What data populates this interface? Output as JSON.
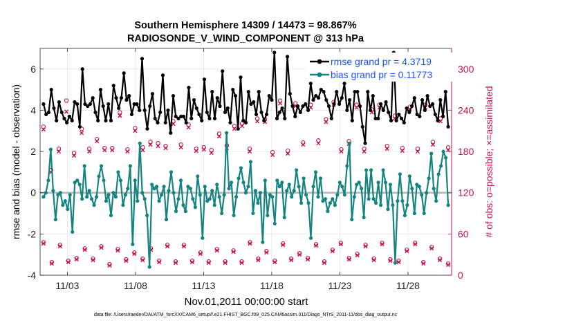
{
  "chart_data": {
    "type": "line",
    "title": "Southern Hemisphere 14309 / 14473 = 98.867%",
    "subtitle": "RADIOSONDE_V_WIND_COMPONENT @ 313 hPa",
    "xlabel": "Nov.01,2011 00:00:00 start",
    "ylabel": "rmse and bias (model - observation)",
    "y2label": "# of obs: o=possible; ×=assimilated",
    "xlim": [
      1.0,
      31.2
    ],
    "ylim": [
      -4,
      7
    ],
    "y2lim": [
      0,
      330
    ],
    "x_ticks": [
      3,
      8,
      13,
      18,
      23,
      28
    ],
    "x_tick_labels": [
      "11/03",
      "11/08",
      "11/13",
      "11/18",
      "11/23",
      "11/28"
    ],
    "y_ticks": [
      "-4",
      "-2",
      "0",
      "2",
      "4",
      "6"
    ],
    "y2_ticks": [
      "0",
      "60",
      "120",
      "180",
      "240",
      "300"
    ],
    "grid": true,
    "legend_position": "top-right",
    "footer": "data file: /Users/raeder/DAI/ATM_forcXX/CAM6_setup/f.e21.FHIST_BGC.f09_025.CAM6assim.011/Diags_NTrS_2011-11/obs_diag_output.nc",
    "series": [
      {
        "name": "rmse grand pr = 4.3719",
        "color": "#000000",
        "marker": "dot",
        "values": [
          4.3,
          3.8,
          3.9,
          5.0,
          4.1,
          3.5,
          4.4,
          3.9,
          3.6,
          3.4,
          3.7,
          3.5,
          4.4,
          4.3,
          3.2,
          6.0,
          4.3,
          4.2,
          4.3,
          4.6,
          3.9,
          3.5,
          5.0,
          4.2,
          3.5,
          4.3,
          3.5,
          5.2,
          4.6,
          4.1,
          4.6,
          5.8,
          4.5,
          4.7,
          3.8,
          4.3,
          4.3,
          4.0,
          6.5,
          4.0,
          3.1,
          4.2,
          4.8,
          3.6,
          3.4,
          3.9,
          5.7,
          3.4,
          4.0,
          2.9,
          4.7,
          3.7,
          3.6,
          3.7,
          3.7,
          3.4,
          5.1,
          3.6,
          4.5,
          4.1,
          3.8,
          3.5,
          5.5,
          3.9,
          3.6,
          4.9,
          3.6,
          4.6,
          4.2,
          5.9,
          3.9,
          4.1,
          3.4,
          5.0,
          4.7,
          3.1,
          5.6,
          3.5,
          3.4,
          4.9,
          4.3,
          4.4,
          3.8,
          4.9,
          3.9,
          3.5,
          3.8,
          4.7,
          4.5,
          6.8,
          3.6,
          3.9,
          4.1,
          3.6,
          6.6,
          4.8,
          4.2,
          3.7,
          4.2,
          3.9,
          4.2,
          4.3,
          4.0,
          5.3,
          4.5,
          4.7,
          4.6,
          5.0,
          4.9,
          4.5,
          4.2,
          3.6,
          4.3,
          4.9,
          4.3,
          4.6,
          5.3,
          4.0,
          4.5,
          3.5,
          4.9,
          4.9,
          4.2,
          3.2,
          2.4,
          4.9,
          4.0,
          4.7,
          3.6,
          3.6,
          4.3,
          4.0,
          4.4,
          3.9,
          3.5,
          6.8,
          3.5,
          3.8,
          3.6,
          3.4,
          4.1,
          3.9,
          4.2,
          4.6,
          3.8,
          3.7,
          4.5,
          4.0,
          4.7,
          4.2,
          4.3,
          3.8,
          3.5,
          4.5,
          3.7,
          4.9,
          3.2
        ]
      },
      {
        "name": "bias grand pr = 0.11773",
        "color": "#138480",
        "marker": "dot",
        "values": [
          -0.2,
          0.0,
          0.6,
          2.1,
          0.1,
          -1.3,
          -0.1,
          0.0,
          -0.6,
          -0.4,
          -0.8,
          -0.1,
          -1.9,
          0.5,
          0.6,
          0.4,
          -0.3,
          1.3,
          -0.2,
          0.1,
          -0.3,
          -0.6,
          -0.2,
          0.8,
          1.3,
          0.6,
          -0.4,
          -0.1,
          -1.1,
          0.0,
          -0.2,
          1.0,
          0.6,
          -0.6,
          -0.1,
          0.2,
          1.3,
          -2.5,
          0.6,
          -0.4,
          2.4,
          0.0,
          -0.3,
          -1.1,
          -3.6,
          0.4,
          0.2,
          0.3,
          -0.4,
          -0.1,
          0.3,
          -1.3,
          0.1,
          1.0,
          0.0,
          -0.9,
          -0.3,
          0.6,
          -0.6,
          -0.9,
          0.3,
          0.2,
          -0.3,
          -0.7,
          0.8,
          -0.1,
          -2.2,
          0.3,
          -0.4,
          -0.3,
          0.1,
          -0.6,
          0.4,
          -0.2,
          -1.0,
          -0.1,
          2.9,
          0.2,
          0.5,
          -1.1,
          -0.2,
          0.7,
          1.2,
          0.5,
          0.0,
          0.3,
          1.5,
          -1.0,
          0.1,
          -0.5,
          0.0,
          -2.4,
          0.6,
          -1.1,
          -0.1,
          -0.2,
          -1.5,
          0.6,
          0.3,
          0.5,
          -1.2,
          0.1,
          0.4,
          -0.2,
          0.1,
          1.1,
          0.3,
          -0.5,
          0.7,
          -0.1,
          -0.5,
          -2.2,
          0.3,
          1.0,
          -0.2,
          0.7,
          -0.4,
          -0.3,
          -0.9,
          -0.5,
          -0.3,
          -0.6,
          -0.1,
          0.5,
          0.3,
          -0.1,
          1.3,
          2.4,
          -1.3,
          -0.2,
          0.4,
          0.5,
          0.2,
          -1.2,
          1.1,
          -0.3,
          1.1,
          -0.3,
          -0.5,
          0.5,
          -0.6,
          1.1,
          0.5,
          -0.8,
          0.4,
          -0.6,
          -3.4,
          -0.4,
          0.9,
          -0.4,
          -1.1,
          -0.6,
          0.8,
          0.2,
          -1.0,
          0.4,
          0.3,
          -0.1,
          -1.0,
          0.0,
          0.7,
          1.9,
          0.2,
          -0.4,
          0.9,
          1.3,
          2.0,
          1.7,
          -0.6
        ]
      }
    ],
    "obs_counts": {
      "possible_high": [
        216,
        153,
        184,
        254,
        178,
        213,
        184,
        198,
        185,
        185,
        237,
        183,
        214,
        186,
        194,
        192,
        188,
        224,
        190,
        219,
        184,
        186,
        182,
        206,
        189,
        217,
        221,
        184,
        228,
        227,
        179,
        254,
        181,
        250,
        193,
        248,
        196,
        227,
        252,
        183,
        195,
        248,
        184,
        241,
        248,
        188,
        232,
        185,
        245,
        184,
        248,
        194,
        228,
        186
      ],
      "assimilated_high": [
        212,
        150,
        180,
        238,
        174,
        207,
        180,
        195,
        182,
        182,
        232,
        180,
        210,
        182,
        190,
        188,
        185,
        220,
        186,
        215,
        181,
        183,
        178,
        202,
        185,
        213,
        217,
        180,
        224,
        223,
        175,
        250,
        177,
        246,
        190,
        244,
        192,
        223,
        248,
        180,
        191,
        244,
        180,
        237,
        244,
        184,
        228,
        181,
        241,
        180,
        244,
        190,
        224,
        182
      ],
      "possible_low": [
        48,
        19,
        44,
        21,
        25,
        39,
        24,
        42,
        16,
        38,
        23,
        33,
        24,
        39,
        21,
        44,
        20,
        44,
        21,
        33,
        20,
        38,
        20,
        36,
        20,
        48,
        24,
        35,
        21,
        46,
        24,
        32,
        25,
        45,
        20,
        37,
        47,
        25,
        31,
        44,
        24,
        47,
        23,
        21,
        37,
        47,
        19,
        41,
        24,
        17
      ],
      "assimilated_low": [
        46,
        17,
        42,
        19,
        23,
        37,
        22,
        40,
        14,
        36,
        21,
        31,
        22,
        37,
        19,
        42,
        18,
        42,
        19,
        31,
        18,
        36,
        18,
        34,
        18,
        46,
        22,
        33,
        19,
        44,
        22,
        30,
        23,
        43,
        18,
        35,
        45,
        23,
        29,
        42,
        22,
        45,
        21,
        19,
        35,
        45,
        17,
        39,
        22,
        15
      ]
    }
  }
}
